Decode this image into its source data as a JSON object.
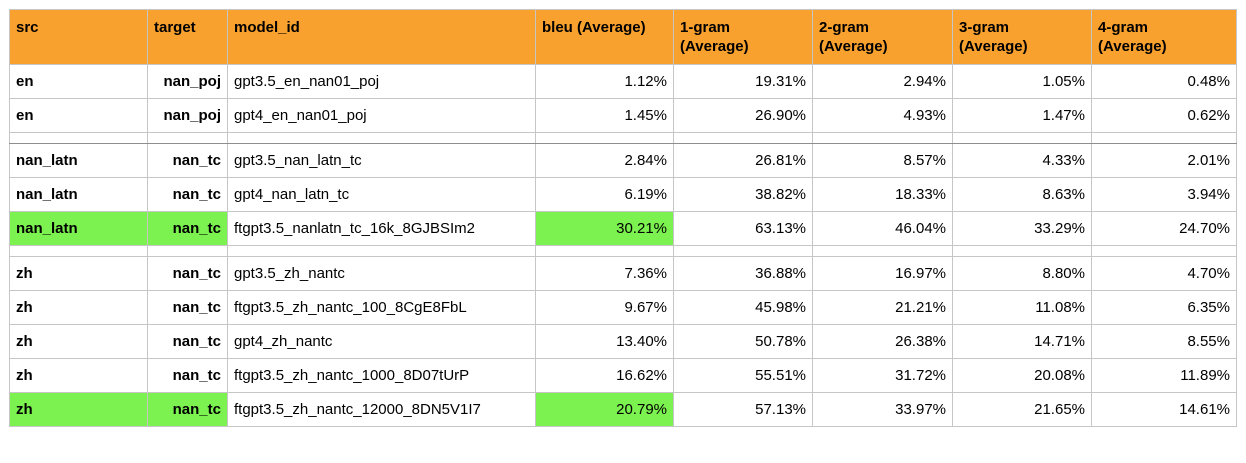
{
  "table": {
    "headers": [
      "src",
      "target",
      "model_id",
      "bleu (Average)",
      "1-gram\n(Average)",
      "2-gram\n(Average)",
      "3-gram\n(Average)",
      "4-gram\n(Average)"
    ],
    "highlight_color": "#7bf24f",
    "header_color": "#f9a12e",
    "groups": [
      [
        {
          "src": "en",
          "target": "nan_poj",
          "model_id": "gpt3.5_en_nan01_poj",
          "bleu": "1.12%",
          "g1": "19.31%",
          "g2": "2.94%",
          "g3": "1.05%",
          "g4": "0.48%",
          "highlight": false
        },
        {
          "src": "en",
          "target": "nan_poj",
          "model_id": "gpt4_en_nan01_poj",
          "bleu": "1.45%",
          "g1": "26.90%",
          "g2": "4.93%",
          "g3": "1.47%",
          "g4": "0.62%",
          "highlight": false
        }
      ],
      [
        {
          "src": "nan_latn",
          "target": "nan_tc",
          "model_id": "gpt3.5_nan_latn_tc",
          "bleu": "2.84%",
          "g1": "26.81%",
          "g2": "8.57%",
          "g3": "4.33%",
          "g4": "2.01%",
          "highlight": false
        },
        {
          "src": "nan_latn",
          "target": "nan_tc",
          "model_id": "gpt4_nan_latn_tc",
          "bleu": "6.19%",
          "g1": "38.82%",
          "g2": "18.33%",
          "g3": "8.63%",
          "g4": "3.94%",
          "highlight": false
        },
        {
          "src": "nan_latn",
          "target": "nan_tc",
          "model_id": "ftgpt3.5_nanlatn_tc_16k_8GJBSIm2",
          "bleu": "30.21%",
          "g1": "63.13%",
          "g2": "46.04%",
          "g3": "33.29%",
          "g4": "24.70%",
          "highlight": true
        }
      ],
      [
        {
          "src": "zh",
          "target": "nan_tc",
          "model_id": "gpt3.5_zh_nantc",
          "bleu": "7.36%",
          "g1": "36.88%",
          "g2": "16.97%",
          "g3": "8.80%",
          "g4": "4.70%",
          "highlight": false
        },
        {
          "src": "zh",
          "target": "nan_tc",
          "model_id": "ftgpt3.5_zh_nantc_100_8CgE8FbL",
          "bleu": "9.67%",
          "g1": "45.98%",
          "g2": "21.21%",
          "g3": "11.08%",
          "g4": "6.35%",
          "highlight": false
        },
        {
          "src": "zh",
          "target": "nan_tc",
          "model_id": "gpt4_zh_nantc",
          "bleu": "13.40%",
          "g1": "50.78%",
          "g2": "26.38%",
          "g3": "14.71%",
          "g4": "8.55%",
          "highlight": false
        },
        {
          "src": "zh",
          "target": "nan_tc",
          "model_id": "ftgpt3.5_zh_nantc_1000_8D07tUrP",
          "bleu": "16.62%",
          "g1": "55.51%",
          "g2": "31.72%",
          "g3": "20.08%",
          "g4": "11.89%",
          "highlight": false
        },
        {
          "src": "zh",
          "target": "nan_tc",
          "model_id": "ftgpt3.5_zh_nantc_12000_8DN5V1I7",
          "bleu": "20.79%",
          "g1": "57.13%",
          "g2": "33.97%",
          "g3": "21.65%",
          "g4": "14.61%",
          "highlight": true
        }
      ]
    ]
  }
}
